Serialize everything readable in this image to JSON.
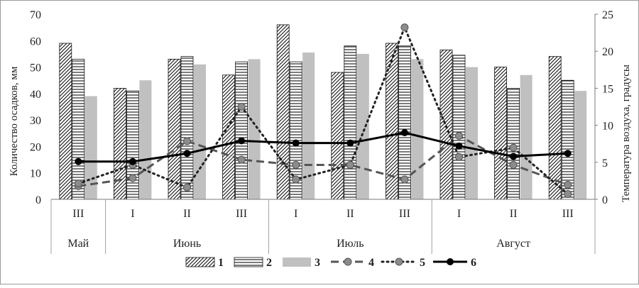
{
  "chart_data": {
    "type": "bar",
    "x_tick_labels": [
      "III",
      "I",
      "II",
      "III",
      "I",
      "II",
      "III",
      "I",
      "II",
      "III"
    ],
    "month_labels": [
      "Май",
      "Июнь",
      "Июль",
      "Август"
    ],
    "month_spans": [
      1,
      3,
      3,
      3
    ],
    "ylabel_left": "Количество осадков, мм",
    "ylabel_right": "Температура воздуха, градусы",
    "ylim_left": [
      0,
      70
    ],
    "yticks_left": [
      0,
      10,
      20,
      30,
      40,
      50,
      60,
      70
    ],
    "ylim_right": [
      0,
      25
    ],
    "yticks_right": [
      0,
      5,
      10,
      15,
      20,
      25
    ],
    "grid": false,
    "legend_position": "bottom",
    "bar_series": [
      {
        "name": "1",
        "pattern": "diagonal-hatch",
        "values": [
          59,
          42,
          53,
          47,
          66,
          48,
          59,
          56.5,
          50,
          54
        ]
      },
      {
        "name": "2",
        "pattern": "horizontal-lines",
        "values": [
          53,
          41,
          54,
          52,
          52,
          58,
          58,
          54.5,
          42,
          45
        ]
      },
      {
        "name": "3",
        "pattern": "solid-gray",
        "color": "#c0c0c0",
        "values": [
          39,
          45,
          51,
          53,
          55.5,
          55,
          53,
          50,
          47,
          41
        ]
      }
    ],
    "line_series": [
      {
        "name": "4",
        "style": "dashed",
        "color": "#555555",
        "marker_color": "#8c8c8c",
        "axis": "left",
        "values": [
          5,
          8,
          22,
          15,
          13,
          13,
          7.5,
          24,
          13,
          5.5
        ]
      },
      {
        "name": "5",
        "style": "dotted",
        "color": "#222222",
        "marker_color": "#8c8c8c",
        "axis": "left",
        "values": [
          6,
          13,
          4.5,
          35,
          7.5,
          13,
          65,
          16,
          19.5,
          2
        ]
      },
      {
        "name": "6",
        "style": "solid",
        "color": "#000000",
        "marker_color": "#000000",
        "axis": "right",
        "values": [
          5.1,
          5.1,
          6.2,
          7.9,
          7.6,
          7.6,
          9.0,
          7.2,
          5.8,
          6.2
        ]
      }
    ]
  }
}
